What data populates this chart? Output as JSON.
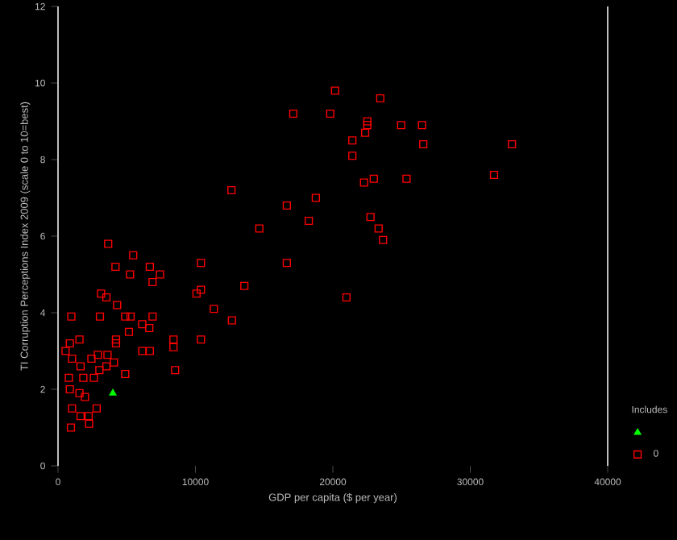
{
  "chart_data": {
    "type": "scatter",
    "xlabel": "GDP per capita ($ per year)",
    "ylabel": "TI Corruption Perceptions Index 2009 (scale 0 to 10=best)",
    "legend_title": "Includes",
    "legend": "bottom right",
    "grid": false,
    "xlim": [
      0,
      40000
    ],
    "xticks": [
      0,
      10000,
      20000,
      30000,
      40000
    ],
    "ylim": [
      0,
      12
    ],
    "yticks": [
      0,
      2,
      4,
      6,
      8,
      10,
      12
    ],
    "series": [
      {
        "color": "#00ff00",
        "marker": "triangle",
        "x": [
          3990
        ],
        "values": [
          1.9
        ]
      },
      {
        "name": "0",
        "color": "#ff0000",
        "marker": "square",
        "x": [
          3650,
          5470,
          4180,
          5240,
          6680,
          7420,
          6880,
          10400,
          3130,
          3520,
          4300,
          10080,
          10400,
          13560,
          11340,
          12660,
          970,
          3050,
          4890,
          5280,
          6880,
          6130,
          6640,
          5160,
          860,
          1560,
          4220,
          4220,
          550,
          1020,
          6130,
          6680,
          8400,
          8400,
          10400,
          8520,
          2430,
          2900,
          3600,
          3010,
          3520,
          4070,
          1640,
          4890,
          790,
          1840,
          2610,
          860,
          1560,
          1960,
          1020,
          2810,
          1640,
          2230,
          2260,
          940,
          12620,
          14650,
          16650,
          18760,
          18250,
          16650,
          17120,
          19810,
          20160,
          23450,
          22510,
          22510,
          24970,
          26490,
          22350,
          21420,
          26580,
          33030,
          21420,
          22270,
          22980,
          25360,
          31730,
          22740,
          23330,
          23650,
          20990
        ],
        "values": [
          5.8,
          5.5,
          5.2,
          5.0,
          5.2,
          5.0,
          4.8,
          5.3,
          4.5,
          4.4,
          4.2,
          4.5,
          4.6,
          4.7,
          4.1,
          3.8,
          3.9,
          3.9,
          3.9,
          3.9,
          3.9,
          3.7,
          3.6,
          3.5,
          3.2,
          3.3,
          3.3,
          3.2,
          3.0,
          2.8,
          3.0,
          3.0,
          3.3,
          3.1,
          3.3,
          2.5,
          2.8,
          2.9,
          2.9,
          2.5,
          2.6,
          2.7,
          2.6,
          2.4,
          2.3,
          2.3,
          2.3,
          2.0,
          1.9,
          1.8,
          1.5,
          1.5,
          1.3,
          1.3,
          1.1,
          1.0,
          7.2,
          6.2,
          6.8,
          7.0,
          6.4,
          5.3,
          9.2,
          9.2,
          9.8,
          9.6,
          9.0,
          8.9,
          8.9,
          8.9,
          8.7,
          8.5,
          8.4,
          8.4,
          8.1,
          7.4,
          7.5,
          7.5,
          7.6,
          6.5,
          6.2,
          5.9,
          4.4
        ]
      }
    ]
  }
}
